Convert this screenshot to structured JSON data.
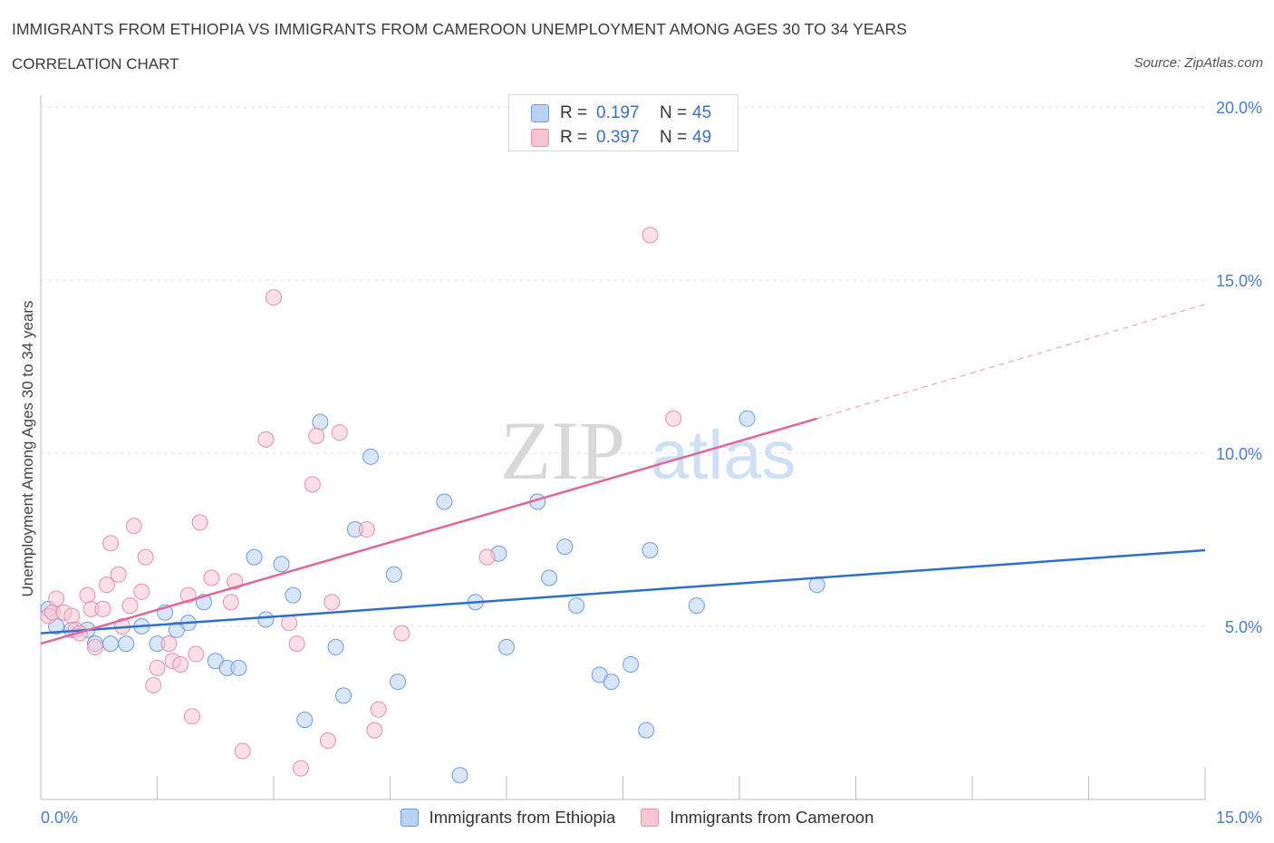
{
  "header": {
    "title": "IMMIGRANTS FROM ETHIOPIA VS IMMIGRANTS FROM CAMEROON UNEMPLOYMENT AMONG AGES 30 TO 34 YEARS",
    "subtitle": "CORRELATION CHART",
    "source": "Source: ZipAtlas.com"
  },
  "watermark": {
    "zip": "ZIP",
    "atlas": "atlas"
  },
  "colors": {
    "ethiopia_fill": "#b9d1f3",
    "ethiopia_stroke": "#6f9de0",
    "ethiopia_line": "#2e6fcc",
    "cameroon_fill": "#f7c6d5",
    "cameroon_stroke": "#e98fab",
    "cameroon_line": "#e0679a",
    "axis_label": "#4a7cc7",
    "grid": "#e3e3e3"
  },
  "legend_top": {
    "rows": [
      {
        "r_label": "R =",
        "r_value": "0.197",
        "n_label": "N =",
        "n_value": "45"
      },
      {
        "r_label": "R =",
        "r_value": "0.397",
        "n_label": "N =",
        "n_value": "49"
      }
    ]
  },
  "legend_bottom": {
    "items": [
      {
        "label": "Immigrants from Ethiopia"
      },
      {
        "label": "Immigrants from Cameroon"
      }
    ]
  },
  "chart_data": {
    "type": "scatter",
    "title": "IMMIGRANTS FROM ETHIOPIA VS IMMIGRANTS FROM CAMEROON UNEMPLOYMENT AMONG AGES 30 TO 34 YEARS",
    "subtitle": "CORRELATION CHART",
    "xlabel": "",
    "ylabel": "Unemployment Among Ages 30 to 34 years",
    "xlim": [
      0,
      15
    ],
    "ylim": [
      0,
      20
    ],
    "x_tick_labels": [
      {
        "value": 0,
        "label": "0.0%"
      },
      {
        "value": 15,
        "label": "15.0%"
      }
    ],
    "y_tick_labels": [
      {
        "value": 5,
        "label": "5.0%"
      },
      {
        "value": 10,
        "label": "10.0%"
      },
      {
        "value": 15,
        "label": "15.0%"
      },
      {
        "value": 20,
        "label": "20.0%"
      }
    ],
    "grid": true,
    "legend_position": "top-center",
    "series": [
      {
        "name": "Immigrants from Ethiopia",
        "R": 0.197,
        "N": 45,
        "trend": {
          "x": [
            0,
            15
          ],
          "y": [
            4.8,
            7.2
          ]
        },
        "points": [
          [
            0.1,
            5.5
          ],
          [
            0.2,
            5.0
          ],
          [
            0.4,
            4.9
          ],
          [
            0.6,
            4.9
          ],
          [
            0.7,
            4.5
          ],
          [
            0.9,
            4.5
          ],
          [
            1.1,
            4.5
          ],
          [
            1.3,
            5.0
          ],
          [
            1.5,
            4.5
          ],
          [
            1.6,
            5.4
          ],
          [
            1.75,
            4.9
          ],
          [
            1.9,
            5.1
          ],
          [
            2.1,
            5.7
          ],
          [
            2.25,
            4.0
          ],
          [
            2.4,
            3.8
          ],
          [
            2.55,
            3.8
          ],
          [
            2.75,
            7.0
          ],
          [
            2.9,
            5.2
          ],
          [
            3.1,
            6.8
          ],
          [
            3.25,
            5.9
          ],
          [
            3.4,
            2.3
          ],
          [
            3.6,
            10.9
          ],
          [
            3.8,
            4.4
          ],
          [
            3.9,
            3.0
          ],
          [
            4.05,
            7.8
          ],
          [
            4.25,
            9.9
          ],
          [
            4.55,
            6.5
          ],
          [
            4.6,
            3.4
          ],
          [
            5.2,
            8.6
          ],
          [
            5.4,
            0.7
          ],
          [
            5.6,
            5.7
          ],
          [
            5.9,
            7.1
          ],
          [
            6.0,
            4.4
          ],
          [
            6.4,
            8.6
          ],
          [
            6.55,
            6.4
          ],
          [
            6.75,
            7.3
          ],
          [
            6.9,
            5.6
          ],
          [
            7.2,
            3.6
          ],
          [
            7.35,
            3.4
          ],
          [
            7.6,
            3.9
          ],
          [
            7.8,
            2.0
          ],
          [
            7.85,
            7.2
          ],
          [
            8.45,
            5.6
          ],
          [
            9.1,
            11.0
          ],
          [
            10.0,
            6.2
          ]
        ]
      },
      {
        "name": "Immigrants from Cameroon",
        "R": 0.397,
        "N": 49,
        "trend": {
          "x": [
            0,
            10.0
          ],
          "y": [
            4.5,
            11.0
          ]
        },
        "trend_dashed": {
          "x": [
            10.0,
            15
          ],
          "y": [
            11.0,
            14.3
          ]
        },
        "points": [
          [
            0.1,
            5.3
          ],
          [
            0.15,
            5.4
          ],
          [
            0.2,
            5.8
          ],
          [
            0.3,
            5.4
          ],
          [
            0.4,
            5.3
          ],
          [
            0.45,
            4.9
          ],
          [
            0.5,
            4.8
          ],
          [
            0.6,
            5.9
          ],
          [
            0.65,
            5.5
          ],
          [
            0.7,
            4.4
          ],
          [
            0.8,
            5.5
          ],
          [
            0.85,
            6.2
          ],
          [
            0.9,
            7.4
          ],
          [
            1.0,
            6.5
          ],
          [
            1.05,
            5.0
          ],
          [
            1.15,
            5.6
          ],
          [
            1.2,
            7.9
          ],
          [
            1.3,
            6.0
          ],
          [
            1.35,
            7.0
          ],
          [
            1.45,
            3.3
          ],
          [
            1.5,
            3.8
          ],
          [
            1.65,
            4.5
          ],
          [
            1.7,
            4.0
          ],
          [
            1.8,
            3.9
          ],
          [
            1.9,
            5.9
          ],
          [
            1.95,
            2.4
          ],
          [
            2.0,
            4.2
          ],
          [
            2.05,
            8.0
          ],
          [
            2.2,
            6.4
          ],
          [
            2.45,
            5.7
          ],
          [
            2.5,
            6.3
          ],
          [
            2.6,
            1.4
          ],
          [
            2.9,
            10.4
          ],
          [
            3.0,
            14.5
          ],
          [
            3.2,
            5.1
          ],
          [
            3.3,
            4.5
          ],
          [
            3.35,
            0.9
          ],
          [
            3.5,
            9.1
          ],
          [
            3.55,
            10.5
          ],
          [
            3.7,
            1.7
          ],
          [
            3.75,
            5.7
          ],
          [
            3.85,
            10.6
          ],
          [
            4.2,
            7.8
          ],
          [
            4.3,
            2.0
          ],
          [
            4.35,
            2.6
          ],
          [
            4.65,
            4.8
          ],
          [
            5.75,
            7.0
          ],
          [
            7.85,
            16.3
          ],
          [
            8.15,
            11.0
          ]
        ]
      }
    ]
  }
}
